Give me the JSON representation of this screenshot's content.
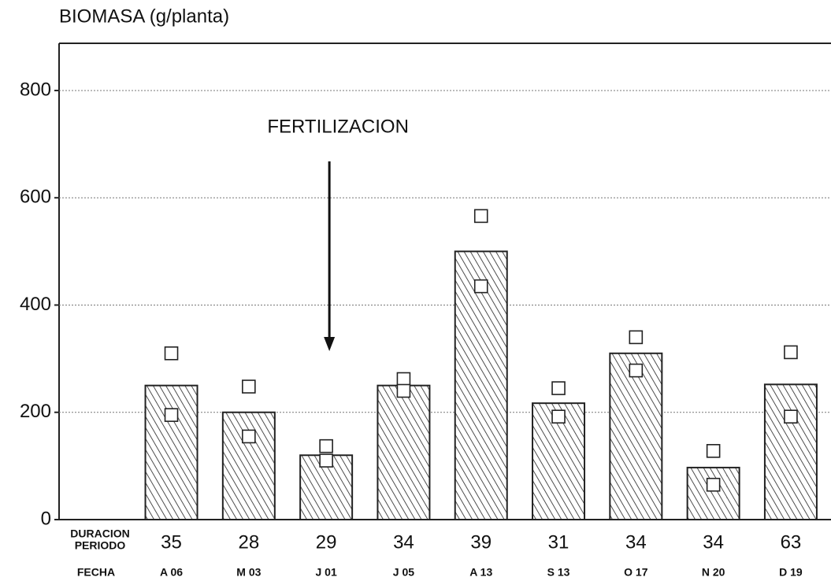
{
  "chart_data": {
    "type": "bar",
    "y_label": "BIOMASA (g/planta)",
    "annotation": {
      "text": "FERTILIZACION",
      "category_index": 2
    },
    "categories": [
      "A 06",
      "M 03",
      "J 01",
      "J 05",
      "A 13",
      "S 13",
      "O 17",
      "N 20",
      "D 19"
    ],
    "category_row_label": "FECHA",
    "duration_row_label": [
      "DURACION",
      "PERIODO"
    ],
    "durations": [
      35,
      28,
      29,
      34,
      39,
      31,
      34,
      34,
      63
    ],
    "series": [
      {
        "kind": "bar",
        "color": "#222222",
        "values": [
          250,
          200,
          120,
          250,
          500,
          217,
          310,
          97,
          252
        ]
      },
      {
        "kind": "marker",
        "color": "#222222",
        "values": [
          310,
          248,
          137,
          262,
          566,
          245,
          340,
          128,
          312
        ]
      },
      {
        "kind": "marker",
        "color": "#222222",
        "values": [
          195,
          155,
          110,
          240,
          435,
          192,
          278,
          65,
          192
        ]
      }
    ],
    "ylim": [
      0,
      888
    ],
    "yticks": [
      0,
      200,
      400,
      600,
      800
    ],
    "grid": true
  }
}
